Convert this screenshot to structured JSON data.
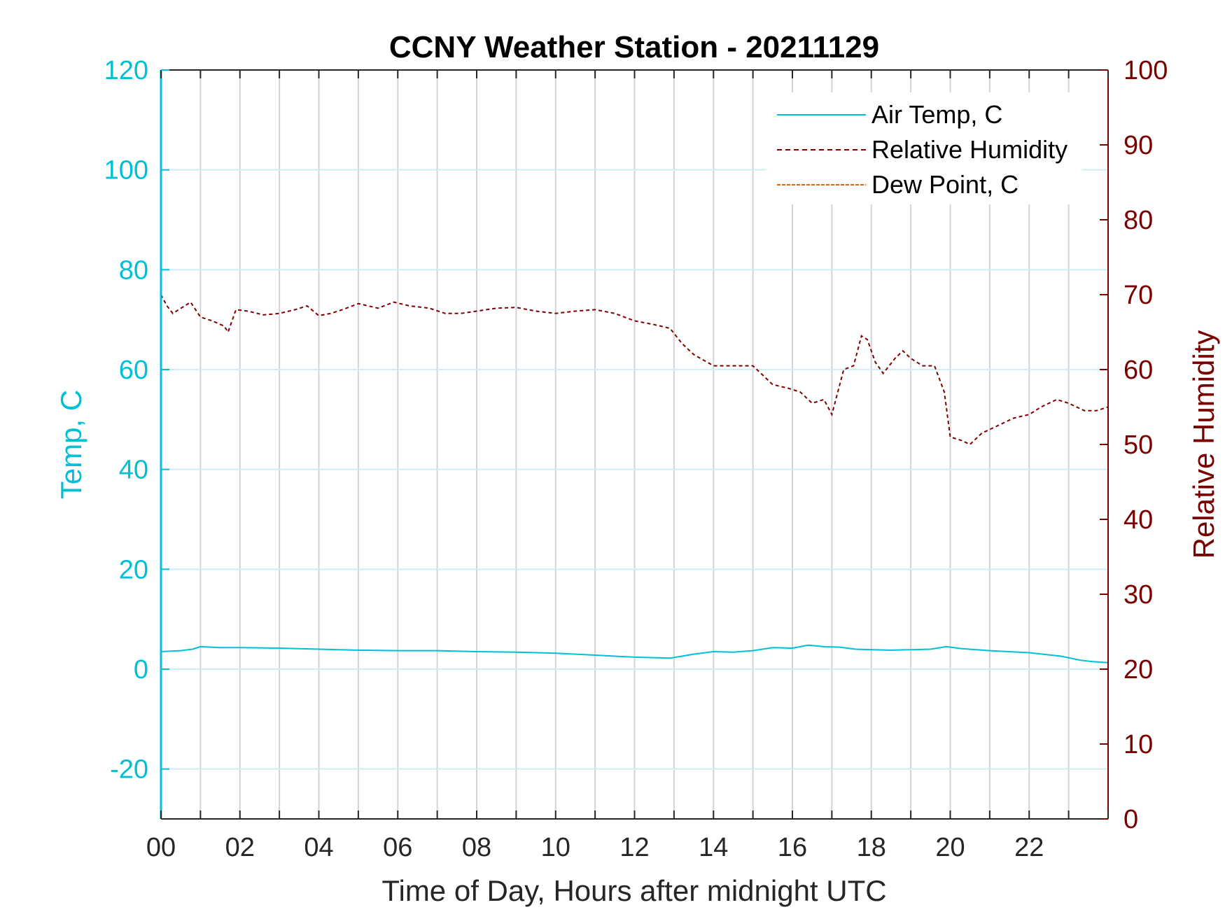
{
  "chart_data": {
    "type": "line",
    "title": "CCNY Weather Station - 20211129",
    "xlabel": "Time of Day, Hours after midnight UTC",
    "ylabel_left": "Temp, C",
    "ylabel_right": "Relative Humidity",
    "xlim": [
      0,
      24
    ],
    "ylim_left": [
      -30,
      120
    ],
    "ylim_right": [
      0,
      100
    ],
    "x_ticks": [
      0,
      2,
      4,
      6,
      8,
      10,
      12,
      14,
      16,
      18,
      20,
      22
    ],
    "x_tick_labels": [
      "00",
      "02",
      "04",
      "06",
      "08",
      "10",
      "12",
      "14",
      "16",
      "18",
      "20",
      "22"
    ],
    "y_left_ticks": [
      -20,
      0,
      20,
      40,
      60,
      80,
      100,
      120
    ],
    "y_left_tick_labels": [
      "-20",
      "0",
      "20",
      "40",
      "60",
      "80",
      "100",
      "120"
    ],
    "y_right_ticks": [
      0,
      10,
      20,
      30,
      40,
      50,
      60,
      70,
      80,
      90,
      100
    ],
    "y_right_tick_labels": [
      "0",
      "10",
      "20",
      "30",
      "40",
      "50",
      "60",
      "70",
      "80",
      "90",
      "100"
    ],
    "grid": true,
    "legend_position": "top-right",
    "colors": {
      "air_temp": "#00bfd8",
      "humidity": "#800000",
      "dew_point": "#e06010",
      "left_axis": "#00c0d8",
      "right_axis": "#7a0000"
    },
    "series": [
      {
        "name": "Air Temp, C",
        "axis": "left",
        "style": "solid",
        "x": [
          0,
          0.5,
          0.8,
          1.0,
          1.5,
          2.0,
          3.0,
          4.0,
          5.0,
          6.0,
          7.0,
          8.0,
          9.0,
          10.0,
          11.0,
          11.5,
          12.0,
          12.5,
          12.9,
          13.2,
          13.5,
          14.0,
          14.5,
          15.0,
          15.5,
          16.0,
          16.4,
          16.8,
          17.2,
          17.6,
          18.0,
          18.5,
          19.0,
          19.5,
          19.9,
          20.3,
          21.0,
          22.0,
          22.8,
          23.3,
          23.6,
          24.0
        ],
        "values": [
          3.5,
          3.7,
          4.0,
          4.5,
          4.3,
          4.3,
          4.2,
          4.0,
          3.8,
          3.7,
          3.7,
          3.5,
          3.4,
          3.2,
          2.8,
          2.6,
          2.4,
          2.3,
          2.2,
          2.6,
          3.0,
          3.5,
          3.4,
          3.7,
          4.3,
          4.2,
          4.8,
          4.5,
          4.4,
          4.0,
          3.9,
          3.8,
          3.9,
          4.0,
          4.5,
          4.1,
          3.7,
          3.3,
          2.6,
          1.8,
          1.5,
          1.3
        ]
      },
      {
        "name": "Relative Humidity",
        "axis": "right",
        "style": "dashed",
        "x": [
          0,
          0.15,
          0.3,
          0.6,
          0.75,
          1.0,
          1.3,
          1.6,
          1.7,
          1.9,
          2.2,
          2.6,
          3.0,
          3.4,
          3.7,
          4.0,
          4.3,
          4.6,
          5.0,
          5.5,
          5.9,
          6.3,
          6.8,
          7.2,
          7.6,
          8.0,
          8.5,
          9.0,
          9.5,
          10.0,
          10.5,
          11.0,
          11.5,
          12.0,
          12.5,
          12.9,
          13.2,
          13.5,
          14.0,
          14.5,
          15.0,
          15.5,
          15.9,
          16.2,
          16.5,
          16.8,
          17.0,
          17.3,
          17.55,
          17.75,
          17.9,
          18.1,
          18.3,
          18.6,
          18.8,
          19.0,
          19.3,
          19.6,
          19.85,
          20.0,
          20.3,
          20.5,
          20.8,
          21.2,
          21.6,
          22.0,
          22.3,
          22.7,
          23.0,
          23.4,
          23.7,
          24.0
        ],
        "values": [
          70,
          68.5,
          67.5,
          68.5,
          69,
          67,
          66.5,
          65.8,
          65,
          68,
          67.8,
          67.3,
          67.5,
          68,
          68.5,
          67.2,
          67.5,
          68,
          68.8,
          68.2,
          69,
          68.5,
          68.2,
          67.5,
          67.5,
          67.8,
          68.2,
          68.3,
          67.8,
          67.5,
          67.8,
          68,
          67.5,
          66.5,
          66,
          65.5,
          63.5,
          62,
          60.5,
          60.5,
          60.5,
          58,
          57.5,
          57,
          55.5,
          56,
          54,
          60,
          60.5,
          64.5,
          64,
          61,
          59.5,
          61.5,
          62.5,
          61.5,
          60.5,
          60.5,
          57,
          51,
          50.5,
          50,
          51.5,
          52.5,
          53.5,
          54,
          55,
          56,
          55.5,
          54.5,
          54.5,
          55
        ]
      },
      {
        "name": "Dew Point, C",
        "axis": "left",
        "style": "dash-dot",
        "x": [],
        "values": []
      }
    ]
  }
}
